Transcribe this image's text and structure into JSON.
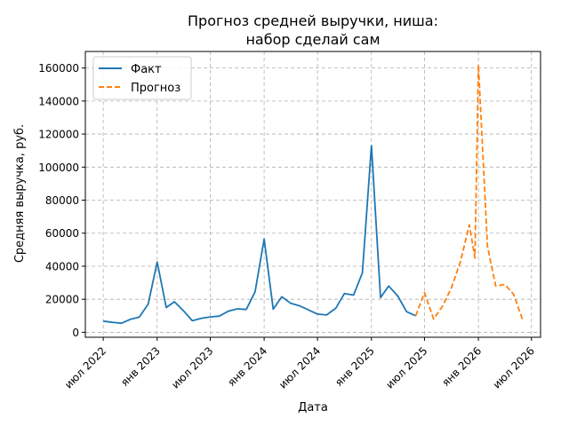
{
  "chart_data": {
    "type": "line",
    "title_lines": [
      "Прогноз средней выручки, ниша:",
      "набор сделай сам"
    ],
    "xlabel": "Дата",
    "ylabel": "Средняя выручка, руб.",
    "x_ticks": [
      "июл 2022",
      "янв 2023",
      "июл 2023",
      "янв 2024",
      "июл 2024",
      "янв 2025",
      "июл 2025",
      "янв 2026",
      "июл 2026"
    ],
    "y_ticks": [
      0,
      20000,
      40000,
      60000,
      80000,
      100000,
      120000,
      140000,
      160000
    ],
    "ylim": [
      -3000,
      170000
    ],
    "xlim": [
      "2022-05-01",
      "2026-08-01"
    ],
    "grid": true,
    "legend_position": "top-left",
    "series": [
      {
        "name": "Факт",
        "color": "#1f77b4",
        "style": "solid",
        "points": [
          [
            "2022-07-01",
            6800
          ],
          [
            "2022-08-01",
            6000
          ],
          [
            "2022-09-01",
            5500
          ],
          [
            "2022-10-01",
            7800
          ],
          [
            "2022-11-01",
            9200
          ],
          [
            "2022-12-01",
            17000
          ],
          [
            "2023-01-01",
            42500
          ],
          [
            "2023-02-01",
            15000
          ],
          [
            "2023-03-01",
            18500
          ],
          [
            "2023-04-01",
            13000
          ],
          [
            "2023-05-01",
            7000
          ],
          [
            "2023-06-01",
            8500
          ],
          [
            "2023-07-01",
            9300
          ],
          [
            "2023-08-01",
            9800
          ],
          [
            "2023-09-01",
            12800
          ],
          [
            "2023-10-01",
            14200
          ],
          [
            "2023-11-01",
            13800
          ],
          [
            "2023-12-01",
            24500
          ],
          [
            "2024-01-01",
            56500
          ],
          [
            "2024-02-01",
            14000
          ],
          [
            "2024-03-01",
            21500
          ],
          [
            "2024-04-01",
            17500
          ],
          [
            "2024-05-01",
            16000
          ],
          [
            "2024-06-01",
            13500
          ],
          [
            "2024-07-01",
            11000
          ],
          [
            "2024-08-01",
            10500
          ],
          [
            "2024-09-01",
            14500
          ],
          [
            "2024-10-01",
            23500
          ],
          [
            "2024-11-01",
            22500
          ],
          [
            "2024-12-01",
            36000
          ],
          [
            "2025-01-01",
            113000
          ],
          [
            "2025-02-01",
            21000
          ],
          [
            "2025-03-01",
            28000
          ],
          [
            "2025-04-01",
            22000
          ],
          [
            "2025-05-01",
            12500
          ],
          [
            "2025-06-01",
            10000
          ]
        ]
      },
      {
        "name": "Прогноз",
        "color": "#ff7f0e",
        "style": "dashed",
        "points": [
          [
            "2025-06-01",
            10000
          ],
          [
            "2025-07-01",
            24000
          ],
          [
            "2025-08-01",
            8000
          ],
          [
            "2025-09-01",
            16000
          ],
          [
            "2025-10-01",
            27000
          ],
          [
            "2025-11-01",
            43000
          ],
          [
            "2025-12-01",
            65000
          ],
          [
            "2025-12-20",
            45000
          ],
          [
            "2026-01-01",
            162000
          ],
          [
            "2026-02-01",
            52000
          ],
          [
            "2026-03-01",
            28000
          ],
          [
            "2026-04-01",
            29000
          ],
          [
            "2026-05-01",
            23000
          ],
          [
            "2026-06-01",
            7500
          ]
        ]
      }
    ]
  }
}
